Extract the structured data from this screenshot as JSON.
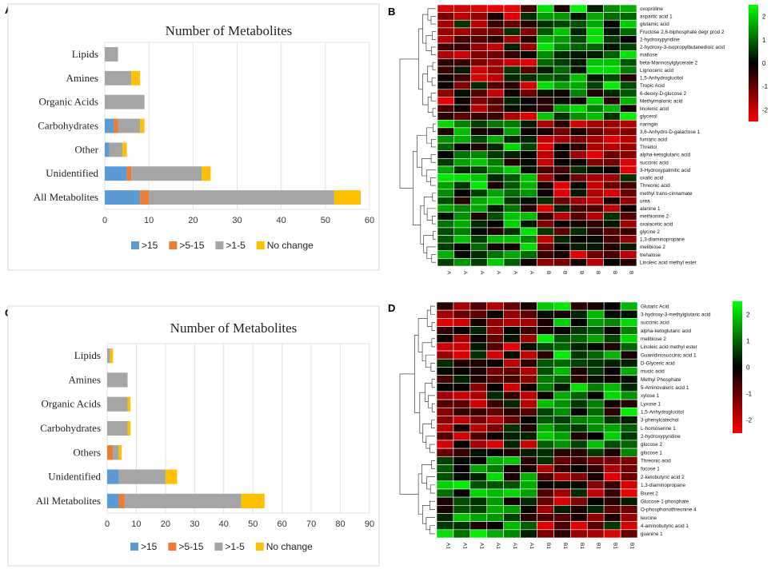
{
  "panels": {
    "a": "A",
    "b": "B",
    "c": "C",
    "d": "D"
  },
  "colors": {
    "gt15": "#5b9bd5",
    "gt5_15": "#ed7d31",
    "gt1_5": "#a5a5a5",
    "no_change": "#ffc000"
  },
  "chart_data": [
    {
      "panel": "A",
      "type": "bar",
      "orientation": "horizontal",
      "stacked": true,
      "title": "Number of Metabolites",
      "categories": [
        "Lipids",
        "Amines",
        "Organic Acids",
        "Carbohydrates",
        "Other",
        "Unidentified",
        "All Metabolites"
      ],
      "series": [
        {
          "name": ">15",
          "color_key": "gt15",
          "values": [
            0,
            0,
            0,
            2,
            1,
            5,
            8
          ]
        },
        {
          "name": ">5-15",
          "color_key": "gt5_15",
          "values": [
            0,
            0,
            0,
            1,
            0,
            1,
            2
          ]
        },
        {
          "name": ">1-5",
          "color_key": "gt1_5",
          "values": [
            3,
            6,
            9,
            5,
            3,
            16,
            42
          ]
        },
        {
          "name": "No change",
          "color_key": "no_change",
          "values": [
            0,
            2,
            0,
            1,
            1,
            2,
            6
          ]
        }
      ],
      "xlim": [
        0,
        60
      ],
      "xticks": [
        0,
        10,
        20,
        30,
        40,
        50,
        60
      ],
      "legend": "bottom"
    },
    {
      "panel": "C",
      "type": "bar",
      "orientation": "horizontal",
      "stacked": true,
      "title": "Number of Metabolites",
      "categories": [
        "Lipids",
        "Amines",
        "Organic Acids",
        "Carbohydrates",
        "Others",
        "Unidentified",
        "All Metabolites"
      ],
      "series": [
        {
          "name": ">15",
          "color_key": "gt15",
          "values": [
            0,
            0,
            0,
            0,
            0,
            4,
            4
          ]
        },
        {
          "name": ">5-15",
          "color_key": "gt5_15",
          "values": [
            0,
            0,
            0,
            0,
            2,
            0,
            2
          ]
        },
        {
          "name": ">1-5",
          "color_key": "gt1_5",
          "values": [
            1,
            7,
            7,
            7,
            2,
            16,
            40
          ]
        },
        {
          "name": "No change",
          "color_key": "no_change",
          "values": [
            1,
            0,
            1,
            1,
            1,
            4,
            8
          ]
        }
      ],
      "xlim": [
        0,
        90
      ],
      "xticks": [
        0,
        10,
        20,
        30,
        40,
        50,
        60,
        70,
        80,
        90
      ],
      "legend": "bottom"
    },
    {
      "panel": "B",
      "type": "heatmap",
      "rows": [
        "oxoproline",
        "aspartic acid 1",
        "glutamic acid",
        "Fructose 2,6-biphosphate degr prod 2",
        "2-hydroxypyridine",
        "2-hydroxy-3-isopropylbutanedioic acid",
        "maltose",
        "beta-Mannosylglycerate 2",
        "Lignoceric acid",
        "1,5-Anhydroglucitol",
        "Tropic Acid",
        "6-deoxy-D-glucose 2",
        "Methylmalonic acid",
        "linolenic acid",
        "glycerol",
        "naringin",
        "3,6-Anhydro-D-galactose 1",
        "fumaric acid",
        "Threitol",
        "alpha-ketoglutaric acid",
        "succinic acid",
        "3-Hydroxypalmitic acid",
        "oxalic acid",
        "Threonic acid",
        "methyl trans-cinnamate",
        "urea",
        "alanine 1",
        "methionine 2",
        "oxalacetic acid",
        "glycine 2",
        "1,3-diaminopropane",
        "melibiose 2",
        "trehalose",
        "Linoleic acid methyl ester"
      ],
      "columns": [
        "A",
        "A",
        "A",
        "A",
        "A",
        "A",
        "B",
        "B",
        "B",
        "B",
        "B",
        "B"
      ],
      "colorbar_ticks": [
        "2",
        "1",
        "0",
        "-1",
        "-2"
      ],
      "group_split_row": 15
    },
    {
      "panel": "D",
      "type": "heatmap",
      "rows": [
        "Glutaric Acid",
        "3-hydroxy-3-methylglutaric acid",
        "succinic acid",
        "alpha-ketoglutaric acid",
        "melibiose 2",
        "Linoleic acid methyl ester",
        "Guanidinosuccinic acid 1",
        "D-Glyceric acid",
        "mucic acid",
        "Methyl Phosphate",
        "5-Aminovaleric acid 1",
        "xylose 1",
        "Lyxose 1",
        "1,5-Anhydroglucitol",
        "3-phenylcatechol",
        "L-homoserine 1",
        "2-hydroxypyridine",
        "glucose 2",
        "glucose 1",
        "Threonic acid",
        "fucose 1",
        "2-ketobutyric acid 2",
        "1,3-diaminopropane",
        "Biuret 2",
        "Glucose-1-phosphate",
        "O-phosphonothreonine 4",
        "leucine",
        "4-aminobutyric acid 1",
        "guanine 1"
      ],
      "columns": [
        "A1",
        "A1",
        "A1",
        "A1",
        "A1",
        "A1",
        "B1",
        "B1",
        "B1",
        "B1",
        "B1",
        "B1"
      ],
      "colorbar_ticks": [
        "2",
        "1",
        "0",
        "-1",
        "-2"
      ],
      "group_split_row": 19
    }
  ]
}
